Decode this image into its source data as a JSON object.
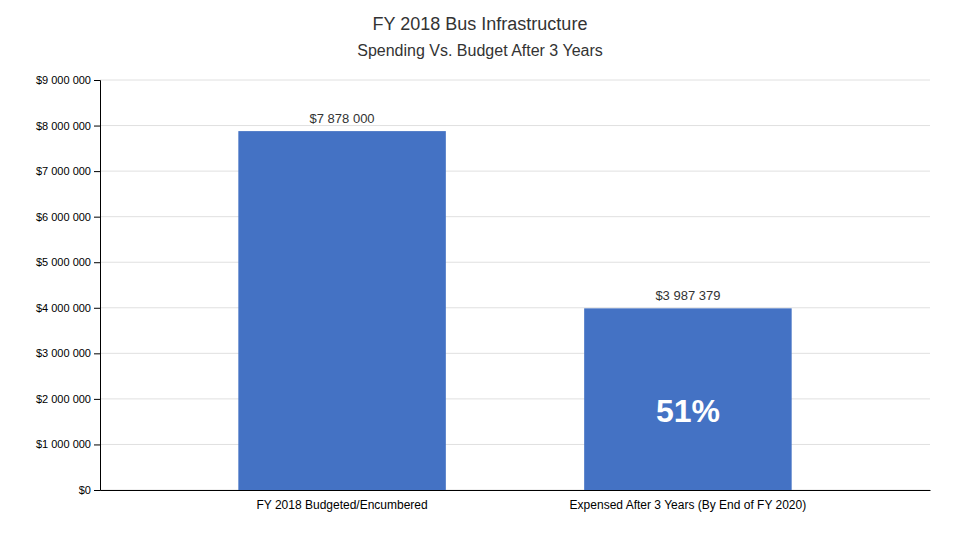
{
  "chart_data": {
    "type": "bar",
    "title": "FY 2018 Bus Infrastructure",
    "subtitle": "Spending Vs. Budget After 3 Years",
    "categories": [
      "FY 2018 Budgeted/Encumbered",
      "Expensed After 3 Years (By End of FY 2020)"
    ],
    "values": [
      7878000,
      3987379
    ],
    "value_labels": [
      "$7 878 000",
      "$3 987 379"
    ],
    "data_labels": true,
    "color": "#4472C4",
    "annotations": [
      "51%"
    ],
    "ylim": [
      0,
      9000000
    ],
    "yticks": [
      {
        "value": 0,
        "label": "$0"
      },
      {
        "value": 1000000,
        "label": "$1 000 000"
      },
      {
        "value": 2000000,
        "label": "$2 000 000"
      },
      {
        "value": 3000000,
        "label": "$3 000 000"
      },
      {
        "value": 4000000,
        "label": "$4 000 000"
      },
      {
        "value": 5000000,
        "label": "$5 000 000"
      },
      {
        "value": 6000000,
        "label": "$6 000 000"
      },
      {
        "value": 7000000,
        "label": "$7 000 000"
      },
      {
        "value": 8000000,
        "label": "$8 000 000"
      },
      {
        "value": 9000000,
        "label": "$9 000 000"
      }
    ],
    "grid": true
  }
}
